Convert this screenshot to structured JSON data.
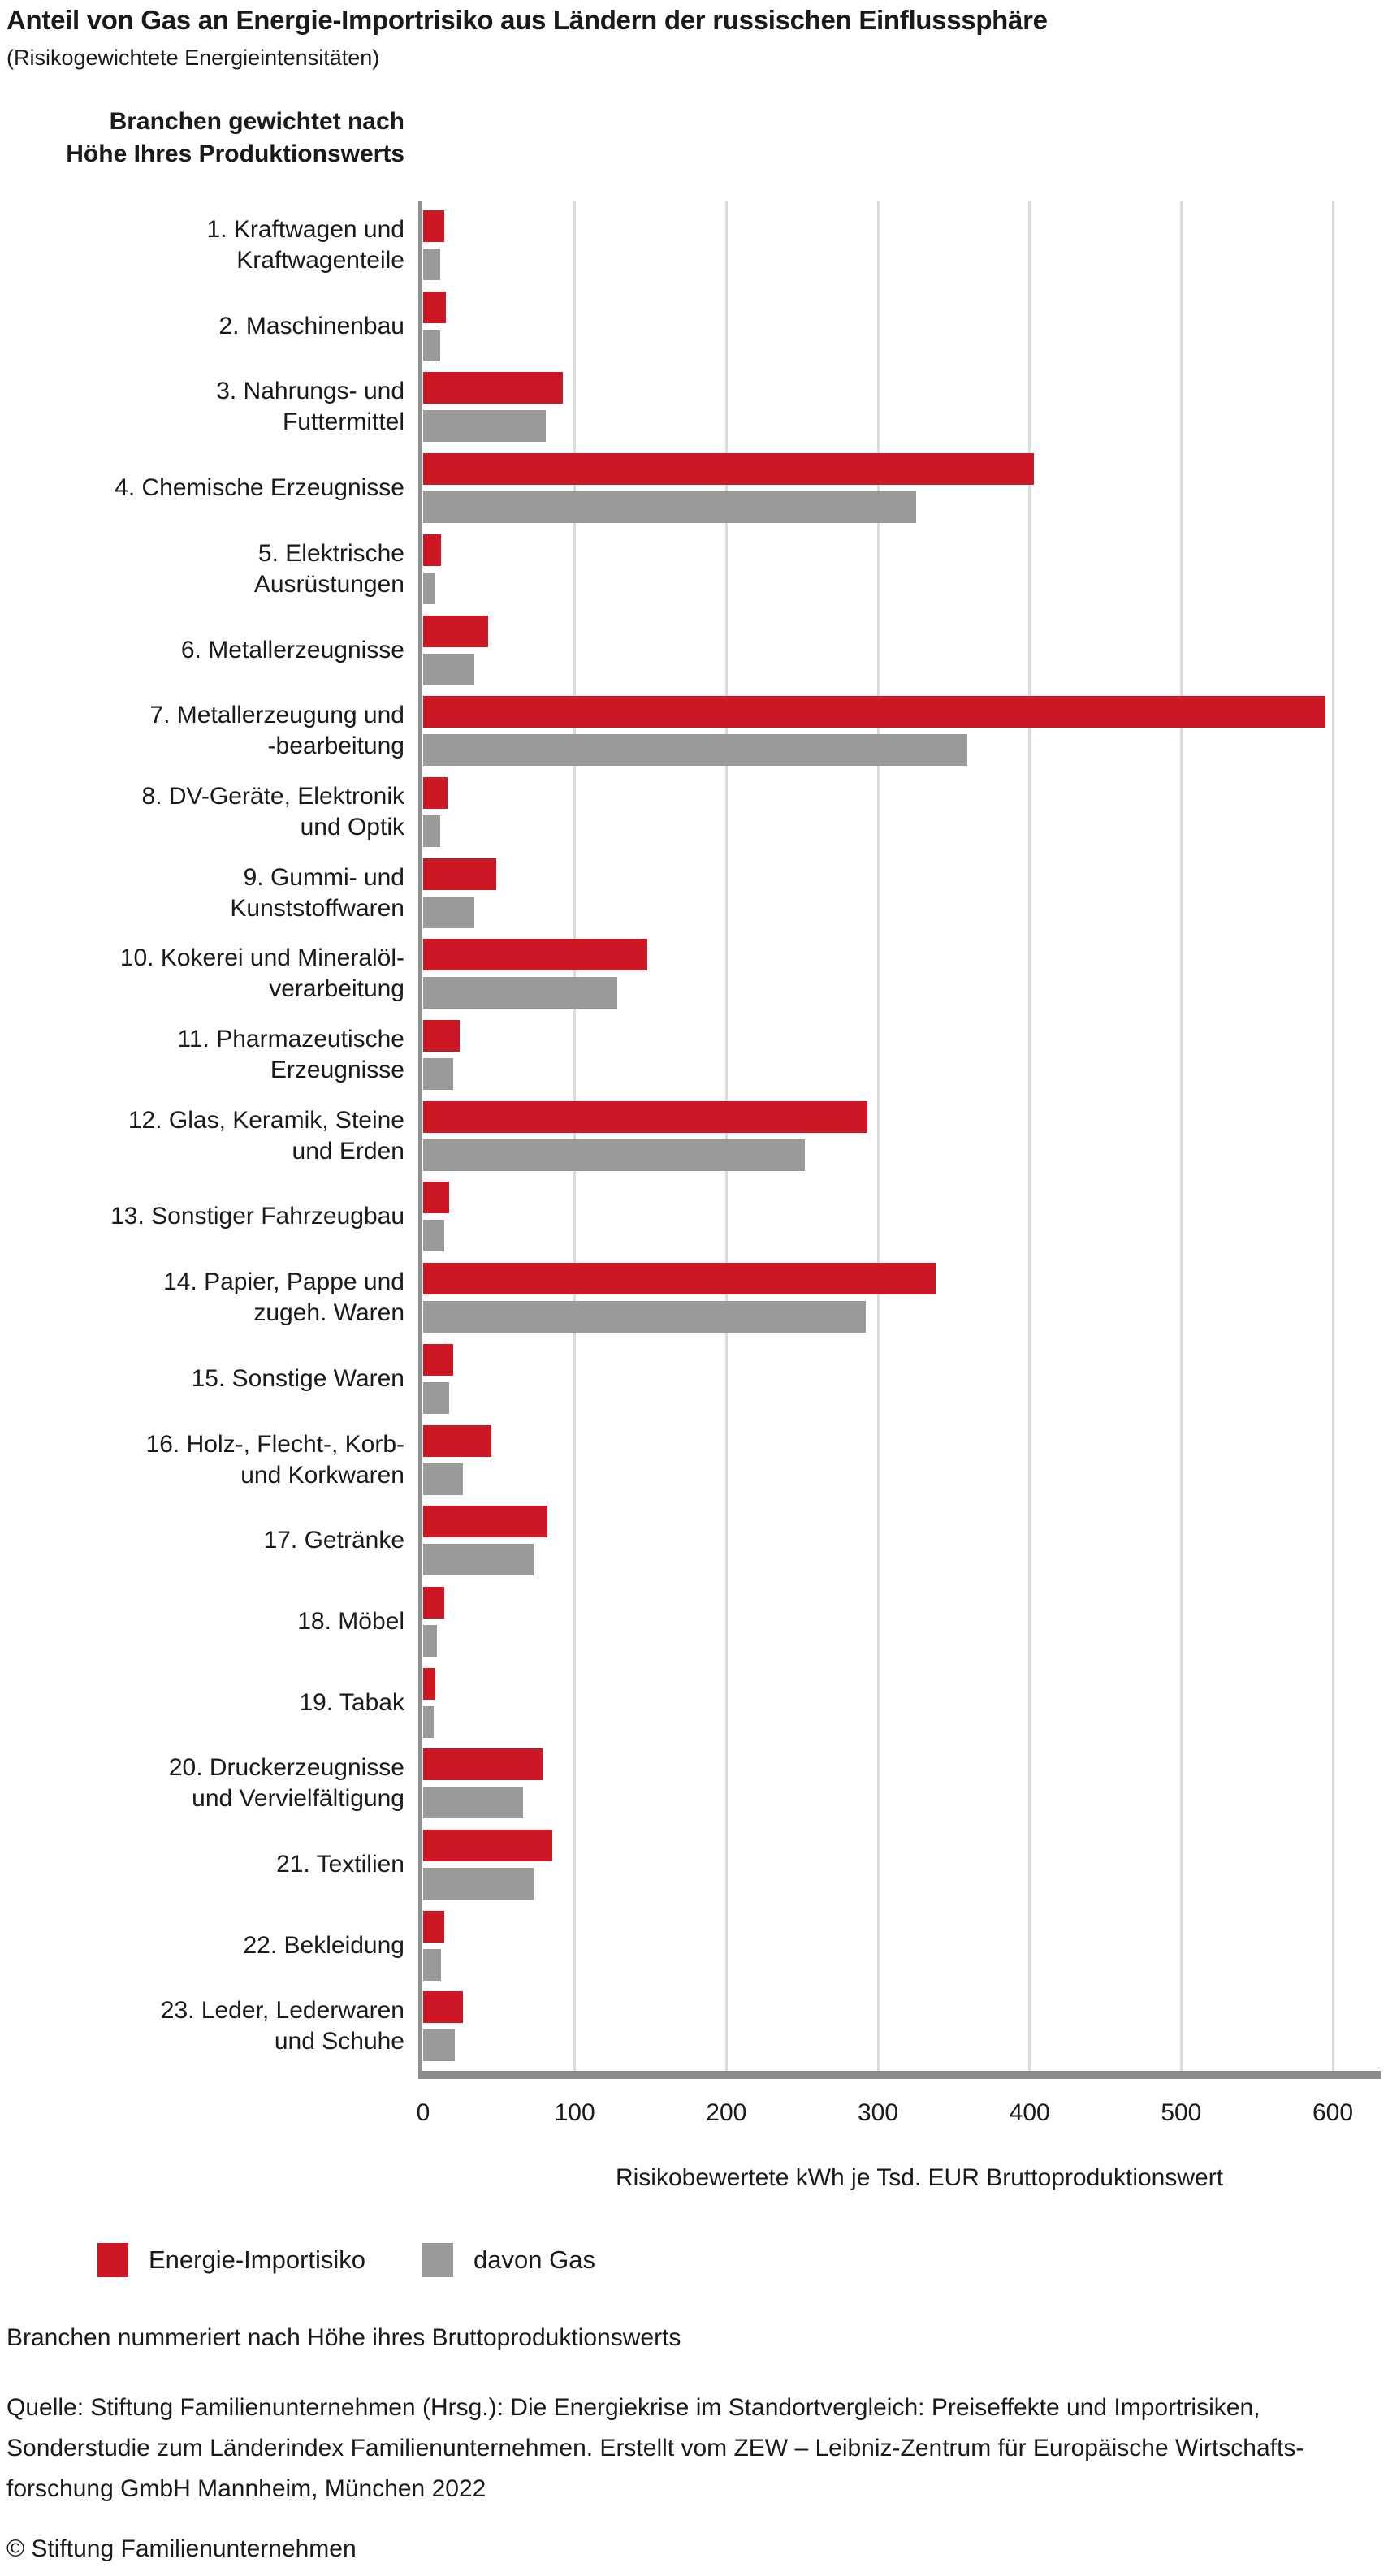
{
  "page": {
    "title": "Anteil von Gas an Energie-Importrisiko aus Ländern der russischen Einflusssphäre",
    "subtitle": "(Risikogewichtete Energieintensitäten)",
    "copyright": "© Stiftung Familienunternehmen"
  },
  "axis_header": {
    "line1": "Branchen gewichtet nach",
    "line2": "Höhe Ihres Produktionswerts"
  },
  "footnote": "Branchen nummeriert nach Höhe ihres Bruttoproduktionswerts",
  "source": {
    "line1": "Quelle: Stiftung Familienunternehmen (Hrsg.): Die Energiekrise im Standortvergleich: Preiseffekte und Importrisiken,",
    "line2": "Sonderstudie zum Länderindex Familienunternehmen. Erstellt vom ZEW – Leibniz-Zentrum für Europäische Wirtschafts-",
    "line3": "forschung GmbH Mannheim, München 2022"
  },
  "colors": {
    "energie_red": "#CD1725",
    "gas_gray": "#9A9A99",
    "baseline_gray": "#8C8C8B",
    "gridline_gray": "#DCDCDB",
    "text": "#1A1A1A"
  },
  "chart_data": {
    "type": "bar",
    "orientation": "horizontal",
    "title": "Anteil von Gas an Energie-Importrisiko aus Ländern der russischen Einflusssphäre",
    "subtitle": "(Risikogewichtete Energieintensitäten)",
    "xlabel": "Risikobewertete kWh je Tsd. EUR Bruttoproduktionswert",
    "xlim": [
      0,
      600
    ],
    "x_ticks": [
      0,
      100,
      200,
      300,
      400,
      500,
      600
    ],
    "grid": true,
    "legend_position": "bottom-left",
    "categories": [
      "1. Kraftwagen und Kraftwagenteile",
      "2. Maschinenbau",
      "3. Nahrungs- und Futtermittel",
      "4. Chemische Erzeugnisse",
      "5. Elektrische Ausrüstungen",
      "6. Metallerzeugnisse",
      "7. Metallerzeugung und -bearbeitung",
      "8. DV-Geräte, Elektronik und Optik",
      "9. Gummi- und Kunststoffwaren",
      "10. Kokerei und Mineralölverarbeitung",
      "11. Pharmazeutische Erzeugnisse",
      "12. Glas, Keramik, Steine und Erden",
      "13. Sonstiger Fahrzeugbau",
      "14. Papier, Pappe und zugeh. Waren",
      "15. Sonstige Waren",
      "16. Holz-, Flecht-, Korb- und Korkwaren",
      "17. Getränke",
      "18. Möbel",
      "19. Tabak",
      "20. Druckerzeugnisse und Vervielfältigung",
      "21. Textilien",
      "22. Bekleidung",
      "23. Leder, Lederwaren und Schuhe"
    ],
    "category_lines": [
      [
        "1. Kraftwagen und",
        "Kraftwagenteile"
      ],
      [
        "2. Maschinenbau"
      ],
      [
        "3. Nahrungs- und",
        "Futtermittel"
      ],
      [
        "4. Chemische Erzeugnisse"
      ],
      [
        "5. Elektrische",
        "Ausrüstungen"
      ],
      [
        "6. Metallerzeugnisse"
      ],
      [
        "7. Metallerzeugung und",
        "-bearbeitung"
      ],
      [
        "8. DV-Geräte, Elektronik",
        "und Optik"
      ],
      [
        "9. Gummi- und",
        "Kunststoffwaren"
      ],
      [
        "10. Kokerei und Mineralöl-",
        "verarbeitung"
      ],
      [
        "11. Pharmazeutische",
        "Erzeugnisse"
      ],
      [
        "12. Glas, Keramik, Steine",
        "und Erden"
      ],
      [
        "13. Sonstiger Fahrzeugbau"
      ],
      [
        "14. Papier, Pappe und",
        "zugeh. Waren"
      ],
      [
        "15. Sonstige Waren"
      ],
      [
        "16. Holz-, Flecht-, Korb-",
        "und Korkwaren"
      ],
      [
        "17. Getränke"
      ],
      [
        "18. Möbel"
      ],
      [
        "19. Tabak"
      ],
      [
        "20. Druckerzeugnisse",
        "und Vervielfältigung"
      ],
      [
        "21. Textilien"
      ],
      [
        "22. Bekleidung"
      ],
      [
        "23. Leder, Lederwaren",
        "und Schuhe"
      ]
    ],
    "series": [
      {
        "name": "Energie-Importisiko",
        "color": "#CD1725",
        "values": [
          14,
          15,
          92,
          403,
          12,
          43,
          595,
          16,
          48,
          148,
          24,
          293,
          17,
          338,
          20,
          45,
          82,
          14,
          8,
          79,
          85,
          14,
          26
        ]
      },
      {
        "name": "davon Gas",
        "color": "#9A9A99",
        "values": [
          11,
          11,
          81,
          325,
          8,
          34,
          359,
          11,
          34,
          128,
          20,
          252,
          14,
          292,
          17,
          26,
          73,
          9,
          7,
          66,
          73,
          12,
          21
        ]
      }
    ]
  }
}
